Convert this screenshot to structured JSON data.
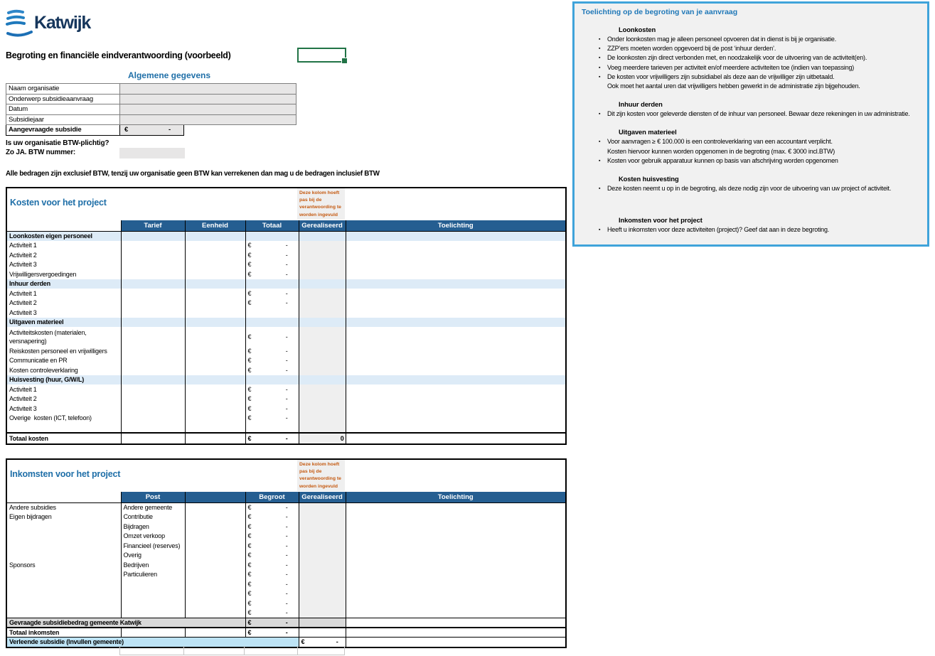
{
  "currency": "€",
  "logo": {
    "text": "Katwijk"
  },
  "page": {
    "title": "Begroting en financiële eindverantwoording (voorbeeld)"
  },
  "general": {
    "heading": "Algemene gegevens",
    "rows": [
      {
        "label": "Naam organisatie",
        "value": ""
      },
      {
        "label": "Onderwerp subsidieaanvraag",
        "value": ""
      },
      {
        "label": "Datum",
        "value": ""
      },
      {
        "label": "Subsidiejaar",
        "value": ""
      },
      {
        "label": "Aangevraagde subsidie",
        "value": "-",
        "euro": true,
        "bold": true
      }
    ],
    "btw_question": "Is uw organisatie BTW-plichtig?",
    "btw_number_label": "Zo JA. BTW nummer:",
    "btw_number_value": "",
    "btw_note": "Alle bedragen zijn exclusief BTW, tenzij uw organisatie geen BTW kan verrekenen dan mag u de bedragen inclusief BTW"
  },
  "kosten": {
    "title": "Kosten voor het project",
    "note": "Deze kolom hoeft pas bij de verantwoording te worden ingevuld",
    "headers": [
      "",
      "Tarief",
      "Eenheid",
      "Totaal",
      "Gerealiseerd",
      "Toelichting"
    ],
    "rows": [
      {
        "t": "cat",
        "label": "Loonkosten eigen personeel"
      },
      {
        "t": "item",
        "label": "Activiteit 1",
        "euro": true,
        "value": "-"
      },
      {
        "t": "item",
        "label": "Activiteit 2",
        "euro": true,
        "value": "-"
      },
      {
        "t": "item",
        "label": "Activiteit 3",
        "euro": true,
        "value": "-"
      },
      {
        "t": "item",
        "label": "Vrijwilligersvergoedingen",
        "euro": true,
        "value": "-"
      },
      {
        "t": "cat",
        "label": "Inhuur derden"
      },
      {
        "t": "item",
        "label": "Activiteit 1",
        "euro": true,
        "value": "-"
      },
      {
        "t": "item",
        "label": "Activiteit 2",
        "euro": true,
        "value": "-"
      },
      {
        "t": "item",
        "label": "Activiteit 3",
        "euro": false,
        "value": ""
      },
      {
        "t": "cat",
        "label": "Uitgaven materieel"
      },
      {
        "t": "item",
        "label": "Activiteitskosten (materialen,\nversnapering)",
        "euro": true,
        "value": "-",
        "tall": true
      },
      {
        "t": "item",
        "label": "Reiskosten personeel en vrijwilligers",
        "euro": true,
        "value": "-"
      },
      {
        "t": "item",
        "label": "Communicatie en PR",
        "euro": true,
        "value": "-"
      },
      {
        "t": "item",
        "label": "Kosten controleverklaring",
        "euro": true,
        "value": "-"
      },
      {
        "t": "cat",
        "label": "Huisvesting (huur, G/W/L)"
      },
      {
        "t": "item",
        "label": "Activiteit 1",
        "euro": true,
        "value": "-"
      },
      {
        "t": "item",
        "label": "Activiteit 2",
        "euro": true,
        "value": "-"
      },
      {
        "t": "item",
        "label": "Activiteit 3",
        "euro": true,
        "value": "-"
      },
      {
        "t": "item",
        "label": "Overige  kosten (ICT, telefoon)",
        "euro": true,
        "value": "-"
      },
      {
        "t": "item",
        "label": "",
        "euro": false,
        "value": ""
      }
    ],
    "total": {
      "label": "Totaal kosten",
      "value": "-",
      "gerealiseerd": "0"
    }
  },
  "inkomsten": {
    "title": "Inkomsten voor het project",
    "note": "Deze kolom hoeft pas bij de verantwoording te worden ingevuld",
    "headers": [
      "",
      "Post",
      "",
      "Begroot",
      "Gerealiseerd",
      "Toelichting"
    ],
    "rows": [
      {
        "group": "Andere subsidies",
        "post": "Andere gemeente",
        "value": "-"
      },
      {
        "group": "Eigen bijdragen",
        "post": "Contributie",
        "value": "-"
      },
      {
        "group": "",
        "post": "Bijdragen",
        "value": "-"
      },
      {
        "group": "",
        "post": "Omzet verkoop",
        "value": "-"
      },
      {
        "group": "",
        "post": "Financieel (reserves)",
        "value": "-"
      },
      {
        "group": "",
        "post": "Overig",
        "value": "-"
      },
      {
        "group": "Sponsors",
        "post": "Bedrijven",
        "value": "-"
      },
      {
        "group": "",
        "post": "Particulieren",
        "value": "-"
      },
      {
        "group": "",
        "post": "",
        "value": "-"
      },
      {
        "group": "",
        "post": "",
        "value": "-"
      },
      {
        "group": "",
        "post": "",
        "value": "-"
      },
      {
        "group": "",
        "post": "",
        "value": "-"
      }
    ],
    "gevraagde": {
      "label": "Gevraagde subsidiebedrag gemeente Katwijk",
      "value": "-"
    },
    "totaal": {
      "label": "Totaal inkomsten",
      "value": "-"
    },
    "verleende": {
      "label": "Verleende subsidie (Invullen gemeente)",
      "value": "-"
    }
  },
  "panel": {
    "title": "Toelichting op de begroting van je aanvraag",
    "bullet_char": "▪",
    "sections": [
      {
        "heading": "Loonkosten",
        "bullets": [
          {
            "text": "Onder loonkosten mag je alleen personeel opvoeren dat in dienst is bij je organisatie."
          },
          {
            "text": "ZZP’ers moeten worden opgevoerd bij de post ‘inhuur derden’."
          },
          {
            "text": "De loonkosten zijn direct verbonden met, en noodzakelijk voor de uitvoering van de activiteit(en)."
          },
          {
            "text": "Voeg meerdere tarieven per activiteit en/of meerdere activiteiten toe (indien van toepassing)"
          },
          {
            "text": "De kosten voor vrijwilligers zijn subsidiabel als deze aan de vrijwilliger zijn uitbetaald.",
            "line2": "Ook moet het aantal uren dat vrijwilligers hebben gewerkt in de administratie zijn bijgehouden."
          }
        ]
      },
      {
        "heading": "Inhuur derden",
        "bullets": [
          {
            "text": "Dit zijn kosten voor geleverde diensten of de inhuur van personeel. Bewaar deze rekeningen in uw administratie."
          }
        ]
      },
      {
        "heading": "Uitgaven materieel",
        "bullets": [
          {
            "text": "Voor aanvragen ≥ € 100.000 is een controleverklaring van een accountant verplicht.",
            "line2": "Kosten hiervoor kunnen worden opgenomen in de begroting (max. € 3000 incl.BTW)"
          },
          {
            "text": "Kosten voor gebruik apparatuur kunnen op basis van afschrijving  worden opgenomen"
          }
        ]
      },
      {
        "heading": "Kosten huisvesting",
        "bullets": [
          {
            "text": "Deze kosten neemt u op in de begroting, als deze nodig zijn voor de uitvoering van uw project of activiteit."
          }
        ]
      },
      {
        "heading": "Inkomsten voor het project",
        "bullets": [
          {
            "text": "Heeft u inkomsten voor deze activiteiten (project)?  Geef dat  aan in deze begroting."
          }
        ]
      }
    ]
  },
  "colors": {
    "header_blue": "#255E91",
    "category_blue": "#DDEBF7",
    "grey_fill": "#E7E6E6",
    "gerealiseerd_grey": "#EFEFEF",
    "gevraagde_grey": "#D9D9D9",
    "verleende_blue": "#BDE3F5",
    "title_blue": "#1F6FA8",
    "note_orange": "#C55A11",
    "panel_border_blue": "#3FA3DA",
    "selection_green": "#217346",
    "logo_navy": "#16365C"
  }
}
